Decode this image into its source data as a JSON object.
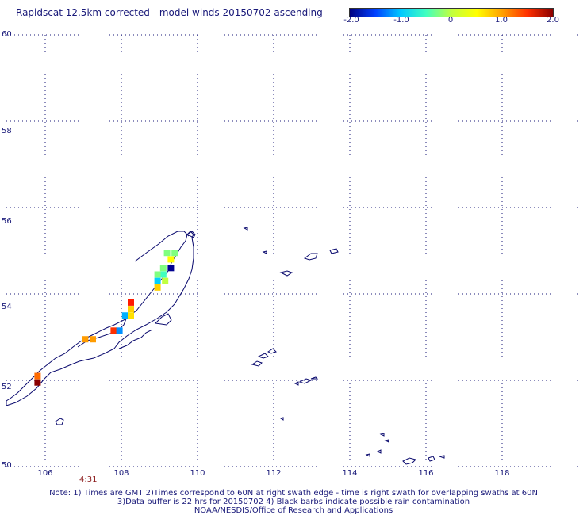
{
  "title": "Rapidscat 12.5km corrected - model winds 20150702 ascending",
  "colorbar": {
    "ticks": [
      "-2.0",
      "-1.0",
      "0",
      "1.0",
      "2.0"
    ],
    "colors": [
      "#000080",
      "#0040ff",
      "#00c8ff",
      "#40ffc0",
      "#c0ff40",
      "#ffff00",
      "#ffa000",
      "#ff3000",
      "#8b0000"
    ]
  },
  "map": {
    "lat_labels": [
      "60",
      "58",
      "56",
      "54",
      "52",
      "50"
    ],
    "lon_labels": [
      "106",
      "108",
      "110",
      "112",
      "114",
      "116",
      "118"
    ],
    "lat_range": [
      50,
      60
    ],
    "lon_range": [
      105.2,
      119.5
    ],
    "grid": "dotted",
    "coastline_color": "#0a0a6e"
  },
  "time_label": "4:31",
  "wind_cells": [
    {
      "lon": 109.4,
      "lat": 54.95,
      "color": "#80ff80"
    },
    {
      "lon": 109.2,
      "lat": 54.95,
      "color": "#80ff80"
    },
    {
      "lon": 109.3,
      "lat": 54.8,
      "color": "#ffff00"
    },
    {
      "lon": 109.3,
      "lat": 54.6,
      "color": "#000090"
    },
    {
      "lon": 109.1,
      "lat": 54.6,
      "color": "#80ff80"
    },
    {
      "lon": 109.1,
      "lat": 54.45,
      "color": "#40ffc0"
    },
    {
      "lon": 108.95,
      "lat": 54.45,
      "color": "#80ff80"
    },
    {
      "lon": 109.15,
      "lat": 54.3,
      "color": "#c0ff40"
    },
    {
      "lon": 108.95,
      "lat": 54.3,
      "color": "#00d0ff"
    },
    {
      "lon": 108.95,
      "lat": 54.15,
      "color": "#ffd000"
    },
    {
      "lon": 108.25,
      "lat": 53.8,
      "color": "#ff1a00"
    },
    {
      "lon": 108.25,
      "lat": 53.65,
      "color": "#ffd000"
    },
    {
      "lon": 108.1,
      "lat": 53.5,
      "color": "#00b0ff"
    },
    {
      "lon": 108.25,
      "lat": 53.5,
      "color": "#ffe000"
    },
    {
      "lon": 107.8,
      "lat": 53.15,
      "color": "#ff3000"
    },
    {
      "lon": 107.95,
      "lat": 53.15,
      "color": "#0090ff"
    },
    {
      "lon": 107.05,
      "lat": 52.95,
      "color": "#ff9c00"
    },
    {
      "lon": 107.25,
      "lat": 52.95,
      "color": "#ff9c00"
    },
    {
      "lon": 105.8,
      "lat": 52.1,
      "color": "#ff6a00"
    },
    {
      "lon": 105.8,
      "lat": 51.95,
      "color": "#8b0000"
    }
  ],
  "notes": [
    "Note: 1) Times are GMT 2)Times correspond to 60N at right swath edge - time is right swath for overlapping swaths at 60N",
    "3)Data buffer is 22 hrs for 20150702 4) Black barbs indicate possible rain contamination",
    "NOAA/NESDIS/Office of Research and Applications"
  ]
}
